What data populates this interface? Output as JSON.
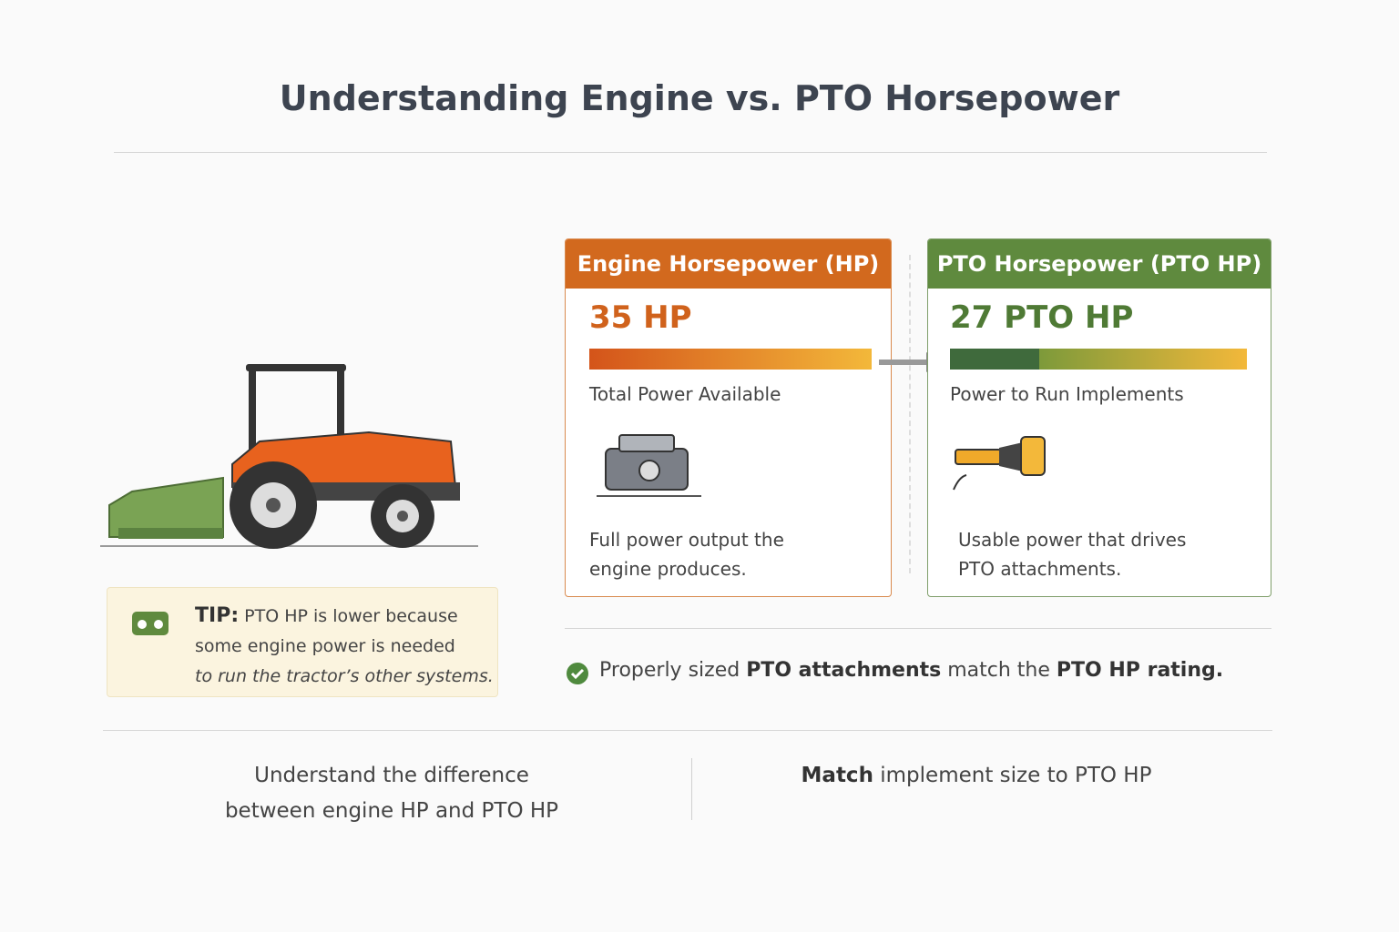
{
  "header": {
    "title": "Understanding Engine vs. PTO Horsepower"
  },
  "tip": {
    "label": "TIP:",
    "lines": [
      "PTO HP is lower because",
      "some engine power is needed",
      "to run the tractor’s other systems."
    ]
  },
  "cards": [
    {
      "heading": "Engine Horsepower (HP)",
      "value": "35 HP",
      "caption": "Total Power Available",
      "description": [
        "Full power output the",
        "engine produces."
      ]
    },
    {
      "heading": "PTO Horsepower (PTO HP)",
      "value": "27 PTO HP",
      "caption": "Power to Run Implements",
      "description": [
        "Usable power that drives",
        "PTO attachments."
      ]
    }
  ],
  "note": {
    "segments": [
      {
        "text": "Properly sized ",
        "bold": false
      },
      {
        "text": "PTO attachments",
        "bold": true
      },
      {
        "text": " match the ",
        "bold": false
      },
      {
        "text": "PTO HP rating.",
        "bold": true
      }
    ]
  },
  "footer": [
    {
      "segments": [
        {
          "text": "Understand the difference",
          "bold": false
        },
        {
          "text": "between engine HP and PTO HP",
          "bold": false
        }
      ],
      "stacked": true
    },
    {
      "segments": [
        {
          "text": "Match",
          "bold": true
        },
        {
          "text": " implement size to PTO HP",
          "bold": false
        }
      ],
      "stacked": false
    }
  ]
}
